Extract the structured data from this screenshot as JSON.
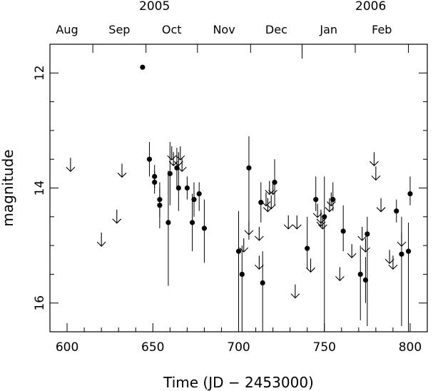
{
  "chart_data": {
    "type": "scatter",
    "title": "",
    "xlabel": "Time (JD − 2453000)",
    "ylabel": "magnitude",
    "xlim": [
      590,
      810
    ],
    "ylim": [
      16.5,
      11.5
    ],
    "y_inverted": true,
    "grid": false,
    "x_ticks": [
      "600",
      "650",
      "700",
      "750",
      "800"
    ],
    "y_ticks": [
      "12",
      "14",
      "16"
    ],
    "top_axis": {
      "months": [
        "Aug",
        "Sep",
        "Oct",
        "Nov",
        "Dec",
        "Jan",
        "Feb"
      ],
      "years": [
        "2005",
        "2006"
      ]
    },
    "series": [
      {
        "marker": "filled-circle",
        "points": [
          {
            "x": 644,
            "y": 11.9
          },
          {
            "x": 648,
            "y": 13.5,
            "err": [
              13.2,
              13.8
            ]
          },
          {
            "x": 651,
            "y": 13.8,
            "err": [
              13.6,
              14.0
            ]
          },
          {
            "x": 651,
            "y": 13.9,
            "err": [
              13.7,
              14.1
            ]
          },
          {
            "x": 654,
            "y": 14.2,
            "err": [
              13.9,
              14.5
            ]
          },
          {
            "x": 654,
            "y": 14.3,
            "err": [
              14.0,
              14.7
            ]
          },
          {
            "x": 659,
            "y": 14.6,
            "err": [
              13.7,
              15.7
            ]
          },
          {
            "x": 660,
            "y": 13.75,
            "err": [
              13.2,
              14.3
            ]
          },
          {
            "x": 664,
            "y": 13.65,
            "err": [
              13.3,
              14.0
            ]
          },
          {
            "x": 665,
            "y": 14.0,
            "err": [
              13.6,
              14.4
            ]
          },
          {
            "x": 670,
            "y": 14.0,
            "err": [
              13.8,
              14.2
            ]
          },
          {
            "x": 673,
            "y": 14.6,
            "err": [
              14.1,
              15.1
            ]
          },
          {
            "x": 674,
            "y": 14.2,
            "err": [
              13.9,
              14.5
            ]
          },
          {
            "x": 677,
            "y": 14.1,
            "err": [
              13.9,
              14.4
            ]
          },
          {
            "x": 680,
            "y": 14.7,
            "err": [
              14.2,
              15.3
            ]
          },
          {
            "x": 700,
            "y": 15.1,
            "err": [
              14.4,
              16.5
            ]
          },
          {
            "x": 702,
            "y": 15.5,
            "err": [
              15.0,
              16.5
            ]
          },
          {
            "x": 706,
            "y": 13.65,
            "err": [
              13.1,
              14.9
            ]
          },
          {
            "x": 713,
            "y": 14.25,
            "err": [
              13.9,
              14.6
            ]
          },
          {
            "x": 714,
            "y": 15.65,
            "err": [
              15.1,
              16.5
            ]
          },
          {
            "x": 721,
            "y": 13.9,
            "err": [
              13.5,
              14.3
            ]
          },
          {
            "x": 740,
            "y": 15.05,
            "err": [
              14.5,
              15.4
            ]
          },
          {
            "x": 745,
            "y": 14.2,
            "err": [
              13.8,
              14.4
            ]
          },
          {
            "x": 750,
            "y": 14.5,
            "err": [
              13.8,
              16.5
            ]
          },
          {
            "x": 755,
            "y": 14.2,
            "err": [
              13.9,
              14.4
            ]
          },
          {
            "x": 761,
            "y": 14.75,
            "err": [
              14.3,
              15.1
            ]
          },
          {
            "x": 771,
            "y": 15.5,
            "err": [
              15.0,
              16.3
            ]
          },
          {
            "x": 774,
            "y": 15.6,
            "err": [
              15.2,
              16.0
            ]
          },
          {
            "x": 775,
            "y": 14.8,
            "err": [
              14.5,
              16.4
            ]
          },
          {
            "x": 792,
            "y": 14.4,
            "err": [
              14.2,
              14.6
            ]
          },
          {
            "x": 795,
            "y": 15.15,
            "err": [
              14.5,
              16.4
            ]
          },
          {
            "x": 799,
            "y": 15.1,
            "err": [
              14.6,
              16.5
            ]
          },
          {
            "x": 800,
            "y": 14.1,
            "err": [
              13.8,
              14.3
            ]
          }
        ]
      },
      {
        "marker": "down-arrow-upper-limit",
        "points": [
          {
            "x": 602,
            "y": 13.6
          },
          {
            "x": 620,
            "y": 14.9
          },
          {
            "x": 629,
            "y": 14.5
          },
          {
            "x": 632,
            "y": 13.7
          },
          {
            "x": 661,
            "y": 13.4
          },
          {
            "x": 662,
            "y": 13.5
          },
          {
            "x": 665,
            "y": 13.5
          },
          {
            "x": 666,
            "y": 13.4
          },
          {
            "x": 667,
            "y": 13.6
          },
          {
            "x": 703,
            "y": 15.0
          },
          {
            "x": 706,
            "y": 14.7
          },
          {
            "x": 712,
            "y": 14.8
          },
          {
            "x": 712,
            "y": 15.3
          },
          {
            "x": 716,
            "y": 14.2
          },
          {
            "x": 717,
            "y": 14.3
          },
          {
            "x": 718,
            "y": 14.0
          },
          {
            "x": 719,
            "y": 14.25
          },
          {
            "x": 720,
            "y": 14.0
          },
          {
            "x": 729,
            "y": 14.6
          },
          {
            "x": 733,
            "y": 15.8
          },
          {
            "x": 734,
            "y": 14.6
          },
          {
            "x": 742,
            "y": 15.35
          },
          {
            "x": 746,
            "y": 14.4
          },
          {
            "x": 748,
            "y": 14.5
          },
          {
            "x": 748,
            "y": 14.55
          },
          {
            "x": 749,
            "y": 14.6
          },
          {
            "x": 753,
            "y": 14.3
          },
          {
            "x": 754,
            "y": 14.2
          },
          {
            "x": 759,
            "y": 15.5
          },
          {
            "x": 766,
            "y": 15.1
          },
          {
            "x": 772,
            "y": 14.8
          },
          {
            "x": 774,
            "y": 15.0
          },
          {
            "x": 779,
            "y": 13.5
          },
          {
            "x": 780,
            "y": 13.75
          },
          {
            "x": 783,
            "y": 14.3
          },
          {
            "x": 788,
            "y": 15.2
          },
          {
            "x": 790,
            "y": 15.3
          },
          {
            "x": 795,
            "y": 14.9
          }
        ]
      }
    ]
  }
}
